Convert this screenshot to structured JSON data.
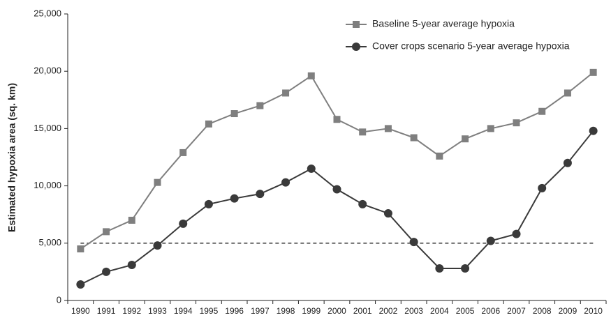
{
  "chart_data": {
    "type": "line",
    "y_label": "Estimated hypoxia area (sq. km)",
    "categories": [
      "1990",
      "1991",
      "1992",
      "1993",
      "1994",
      "1995",
      "1996",
      "1997",
      "1998",
      "1999",
      "2000",
      "2001",
      "2002",
      "2003",
      "2004",
      "2005",
      "2006",
      "2007",
      "2008",
      "2009",
      "2010"
    ],
    "series": [
      {
        "name": "Baseline 5-year average hypoxia",
        "color": "#7f7f7f",
        "marker": "square",
        "values": [
          4500,
          6000,
          7000,
          10300,
          12900,
          15400,
          16300,
          17000,
          18100,
          19600,
          15800,
          14700,
          15000,
          14200,
          12600,
          14100,
          15000,
          15500,
          16500,
          18100,
          19900
        ]
      },
      {
        "name": "Cover crops scenario 5-year average hypoxia",
        "color": "#3a3a3a",
        "marker": "circle",
        "values": [
          1400,
          2500,
          3100,
          4800,
          6700,
          8400,
          8900,
          9300,
          10300,
          11500,
          9700,
          8400,
          7600,
          5100,
          2800,
          2800,
          5200,
          5800,
          9800,
          12000,
          14800
        ]
      }
    ],
    "reference_line": 5000,
    "ylim": [
      0,
      25000
    ],
    "yticks": [
      0,
      {
        "value": 5000,
        "label": "5,000"
      },
      {
        "value": 10000,
        "label": "10,000"
      },
      {
        "value": 15000,
        "label": "15,000"
      },
      {
        "value": 20000,
        "label": "20,000"
      },
      {
        "value": 25000,
        "label": "25,000"
      }
    ],
    "legend": "top-right"
  }
}
